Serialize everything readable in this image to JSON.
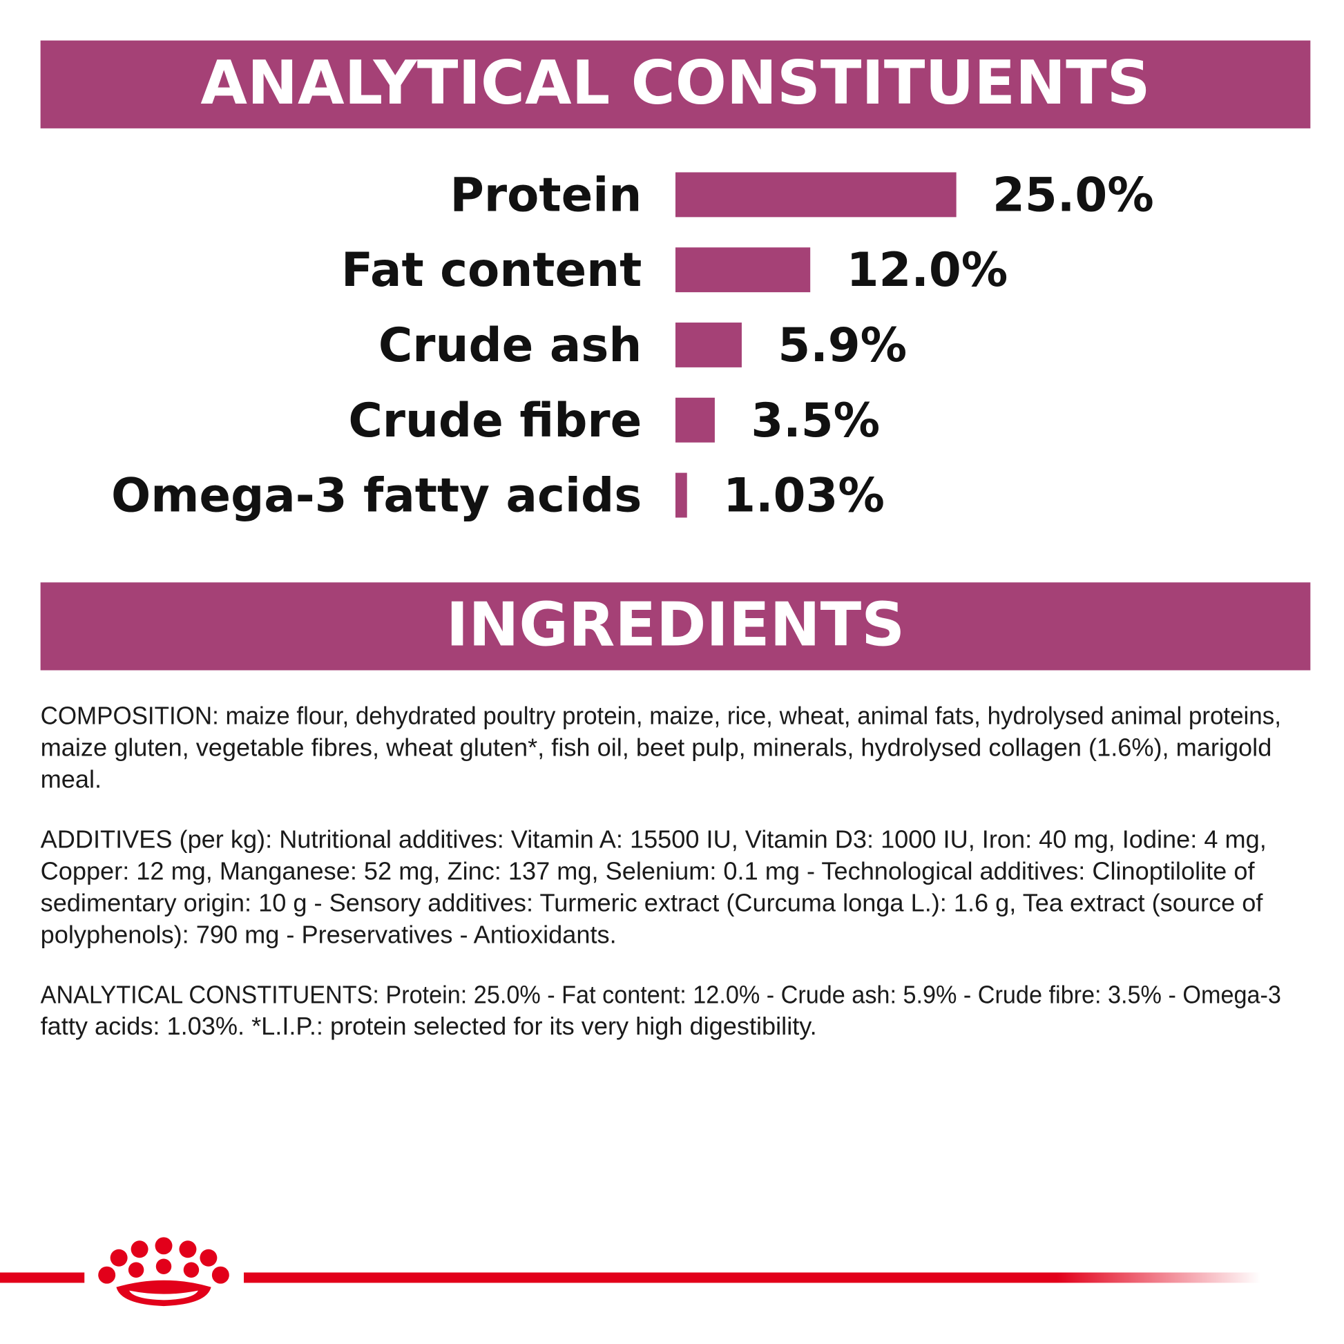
{
  "chart_data": {
    "type": "bar",
    "orientation": "horizontal",
    "title": "ANALYTICAL CONSTITUENTS",
    "categories": [
      "Protein",
      "Fat content",
      "Crude ash",
      "Crude fibre",
      "Omega-3 fatty acids"
    ],
    "values": [
      25.0,
      12.0,
      5.9,
      3.5,
      1.03
    ],
    "value_labels": [
      "25.0%",
      "12.0%",
      "5.9%",
      "3.5%",
      "1.03%"
    ],
    "color": "#a54176"
  },
  "ingredients": {
    "title": "INGREDIENTS",
    "paragraphs": [
      [
        "COMPOSITION: maize flour, dehydrated poultry protein, maize, rice, wheat, animal fats, hydrolysed animal proteins,",
        "maize gluten, vegetable fibres, wheat gluten*, fish oil, beet pulp, minerals, hydrolysed collagen (1.6%), marigold",
        "meal."
      ],
      [
        "ADDITIVES (per kg): Nutritional additives: Vitamin A: 15500 IU, Vitamin D3: 1000 IU, Iron: 40 mg, Iodine: 4 mg,",
        "Copper: 12 mg, Manganese: 52 mg, Zinc: 137 mg, Selenium: 0.1 mg - Technological additives: Clinoptilolite of",
        "sedimentary origin: 10 g - Sensory additives: Turmeric extract (Curcuma longa L.): 1.6 g, Tea extract (source of",
        "polyphenols): 790 mg - Preservatives - Antioxidants."
      ],
      [
        "ANALYTICAL CONSTITUENTS: Protein: 25.0% - Fat content: 12.0% - Crude ash: 5.9% - Crude fibre: 3.5% - Omega-3",
        "fatty acids: 1.03%. *L.I.P.: protein selected for its very high digestibility."
      ]
    ]
  }
}
